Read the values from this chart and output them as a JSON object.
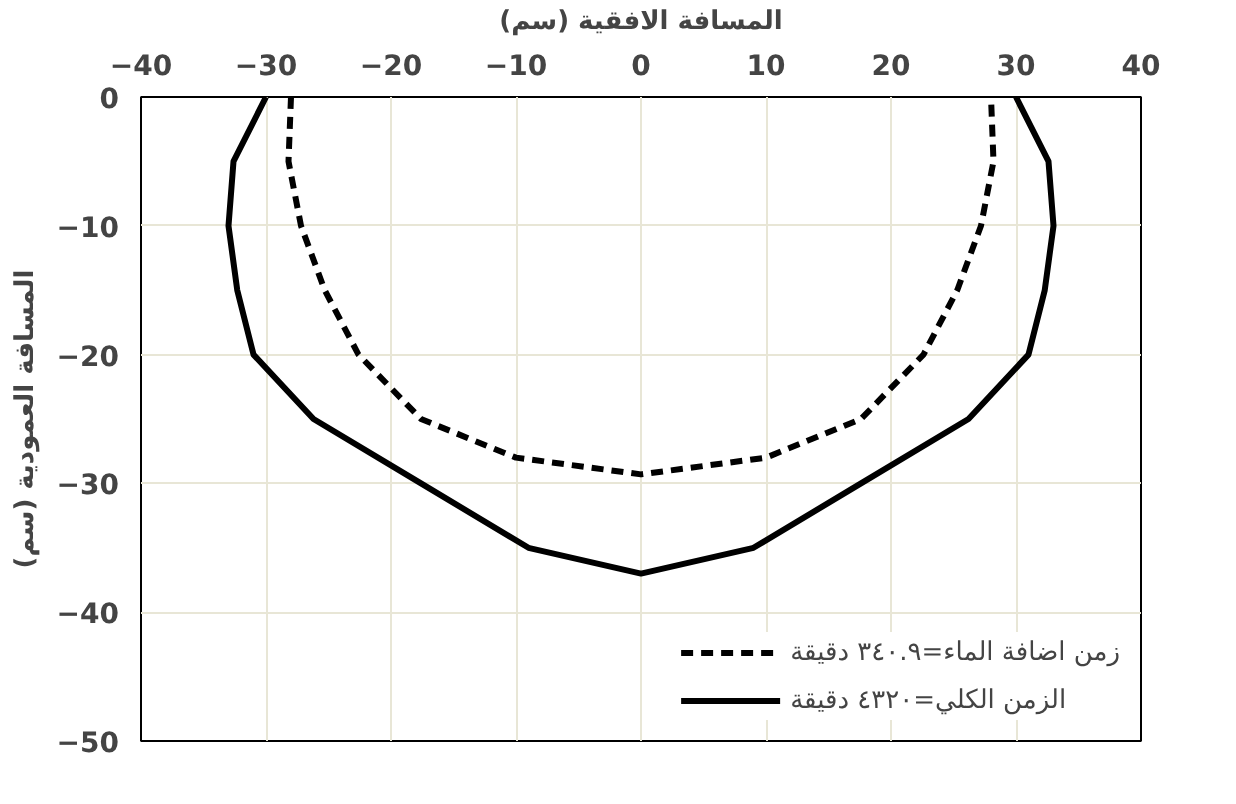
{
  "chart_data": {
    "type": "line",
    "xlabel": "المسافة الافقية (سم)",
    "ylabel": "المسافة العمودية (سم)",
    "xlim": [
      -40,
      40
    ],
    "ylim": [
      -50,
      0
    ],
    "xticks": [
      -40,
      -30,
      -20,
      -10,
      0,
      10,
      20,
      30,
      40
    ],
    "yticks": [
      0,
      -10,
      -20,
      -30,
      -40,
      -50
    ],
    "grid": true,
    "legend": "bottom right",
    "series": [
      {
        "name": "زمن اضافة الماء=٣٤٠.٩ دقيقة",
        "color": "#000000",
        "line_style": "dashed",
        "x": [
          -28,
          -28.2,
          -27.2,
          -25.3,
          -22.6,
          -17.6,
          -10,
          0,
          10,
          17.6,
          22.6,
          25.3,
          27.2,
          28.2,
          28
        ],
        "values": [
          0,
          -5,
          -10,
          -15,
          -20,
          -25,
          -28,
          -29.3,
          -28,
          -25,
          -20,
          -15,
          -10,
          -5,
          0
        ]
      },
      {
        "name": "الزمن الكلي=٤٣٢٠ دقيقة",
        "color": "#000000",
        "line_style": "solid",
        "x": [
          -30,
          -32.6,
          -33,
          -32.3,
          -31,
          -26.2,
          -17.6,
          -9,
          0,
          9,
          17.6,
          26.2,
          31,
          32.3,
          33,
          32.6,
          30
        ],
        "values": [
          0,
          -5,
          -10,
          -15,
          -20,
          -25,
          -30,
          -35,
          -37,
          -35,
          -30,
          -25,
          -20,
          -15,
          -10,
          -5,
          0
        ]
      }
    ]
  }
}
